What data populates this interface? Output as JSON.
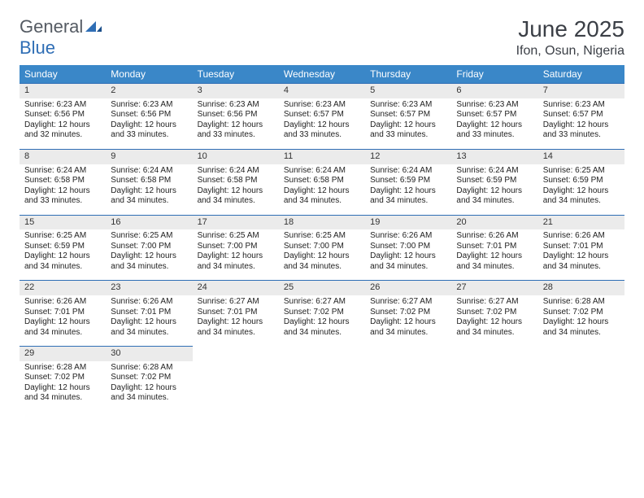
{
  "logo": {
    "general": "General",
    "blue": "Blue"
  },
  "title": "June 2025",
  "location": "Ifon, Osun, Nigeria",
  "colors": {
    "header_bg": "#3a87c8",
    "header_text": "#ffffff",
    "border": "#2f6eb5",
    "daynum_bg": "#ebebeb",
    "logo_gray": "#555b63",
    "logo_blue": "#2f6eb5",
    "text": "#222222",
    "title_color": "#3b3f46"
  },
  "day_headers": [
    "Sunday",
    "Monday",
    "Tuesday",
    "Wednesday",
    "Thursday",
    "Friday",
    "Saturday"
  ],
  "weeks": [
    [
      {
        "n": "1",
        "sr": "Sunrise: 6:23 AM",
        "ss": "Sunset: 6:56 PM",
        "d1": "Daylight: 12 hours",
        "d2": "and 32 minutes."
      },
      {
        "n": "2",
        "sr": "Sunrise: 6:23 AM",
        "ss": "Sunset: 6:56 PM",
        "d1": "Daylight: 12 hours",
        "d2": "and 33 minutes."
      },
      {
        "n": "3",
        "sr": "Sunrise: 6:23 AM",
        "ss": "Sunset: 6:56 PM",
        "d1": "Daylight: 12 hours",
        "d2": "and 33 minutes."
      },
      {
        "n": "4",
        "sr": "Sunrise: 6:23 AM",
        "ss": "Sunset: 6:57 PM",
        "d1": "Daylight: 12 hours",
        "d2": "and 33 minutes."
      },
      {
        "n": "5",
        "sr": "Sunrise: 6:23 AM",
        "ss": "Sunset: 6:57 PM",
        "d1": "Daylight: 12 hours",
        "d2": "and 33 minutes."
      },
      {
        "n": "6",
        "sr": "Sunrise: 6:23 AM",
        "ss": "Sunset: 6:57 PM",
        "d1": "Daylight: 12 hours",
        "d2": "and 33 minutes."
      },
      {
        "n": "7",
        "sr": "Sunrise: 6:23 AM",
        "ss": "Sunset: 6:57 PM",
        "d1": "Daylight: 12 hours",
        "d2": "and 33 minutes."
      }
    ],
    [
      {
        "n": "8",
        "sr": "Sunrise: 6:24 AM",
        "ss": "Sunset: 6:58 PM",
        "d1": "Daylight: 12 hours",
        "d2": "and 33 minutes."
      },
      {
        "n": "9",
        "sr": "Sunrise: 6:24 AM",
        "ss": "Sunset: 6:58 PM",
        "d1": "Daylight: 12 hours",
        "d2": "and 34 minutes."
      },
      {
        "n": "10",
        "sr": "Sunrise: 6:24 AM",
        "ss": "Sunset: 6:58 PM",
        "d1": "Daylight: 12 hours",
        "d2": "and 34 minutes."
      },
      {
        "n": "11",
        "sr": "Sunrise: 6:24 AM",
        "ss": "Sunset: 6:58 PM",
        "d1": "Daylight: 12 hours",
        "d2": "and 34 minutes."
      },
      {
        "n": "12",
        "sr": "Sunrise: 6:24 AM",
        "ss": "Sunset: 6:59 PM",
        "d1": "Daylight: 12 hours",
        "d2": "and 34 minutes."
      },
      {
        "n": "13",
        "sr": "Sunrise: 6:24 AM",
        "ss": "Sunset: 6:59 PM",
        "d1": "Daylight: 12 hours",
        "d2": "and 34 minutes."
      },
      {
        "n": "14",
        "sr": "Sunrise: 6:25 AM",
        "ss": "Sunset: 6:59 PM",
        "d1": "Daylight: 12 hours",
        "d2": "and 34 minutes."
      }
    ],
    [
      {
        "n": "15",
        "sr": "Sunrise: 6:25 AM",
        "ss": "Sunset: 6:59 PM",
        "d1": "Daylight: 12 hours",
        "d2": "and 34 minutes."
      },
      {
        "n": "16",
        "sr": "Sunrise: 6:25 AM",
        "ss": "Sunset: 7:00 PM",
        "d1": "Daylight: 12 hours",
        "d2": "and 34 minutes."
      },
      {
        "n": "17",
        "sr": "Sunrise: 6:25 AM",
        "ss": "Sunset: 7:00 PM",
        "d1": "Daylight: 12 hours",
        "d2": "and 34 minutes."
      },
      {
        "n": "18",
        "sr": "Sunrise: 6:25 AM",
        "ss": "Sunset: 7:00 PM",
        "d1": "Daylight: 12 hours",
        "d2": "and 34 minutes."
      },
      {
        "n": "19",
        "sr": "Sunrise: 6:26 AM",
        "ss": "Sunset: 7:00 PM",
        "d1": "Daylight: 12 hours",
        "d2": "and 34 minutes."
      },
      {
        "n": "20",
        "sr": "Sunrise: 6:26 AM",
        "ss": "Sunset: 7:01 PM",
        "d1": "Daylight: 12 hours",
        "d2": "and 34 minutes."
      },
      {
        "n": "21",
        "sr": "Sunrise: 6:26 AM",
        "ss": "Sunset: 7:01 PM",
        "d1": "Daylight: 12 hours",
        "d2": "and 34 minutes."
      }
    ],
    [
      {
        "n": "22",
        "sr": "Sunrise: 6:26 AM",
        "ss": "Sunset: 7:01 PM",
        "d1": "Daylight: 12 hours",
        "d2": "and 34 minutes."
      },
      {
        "n": "23",
        "sr": "Sunrise: 6:26 AM",
        "ss": "Sunset: 7:01 PM",
        "d1": "Daylight: 12 hours",
        "d2": "and 34 minutes."
      },
      {
        "n": "24",
        "sr": "Sunrise: 6:27 AM",
        "ss": "Sunset: 7:01 PM",
        "d1": "Daylight: 12 hours",
        "d2": "and 34 minutes."
      },
      {
        "n": "25",
        "sr": "Sunrise: 6:27 AM",
        "ss": "Sunset: 7:02 PM",
        "d1": "Daylight: 12 hours",
        "d2": "and 34 minutes."
      },
      {
        "n": "26",
        "sr": "Sunrise: 6:27 AM",
        "ss": "Sunset: 7:02 PM",
        "d1": "Daylight: 12 hours",
        "d2": "and 34 minutes."
      },
      {
        "n": "27",
        "sr": "Sunrise: 6:27 AM",
        "ss": "Sunset: 7:02 PM",
        "d1": "Daylight: 12 hours",
        "d2": "and 34 minutes."
      },
      {
        "n": "28",
        "sr": "Sunrise: 6:28 AM",
        "ss": "Sunset: 7:02 PM",
        "d1": "Daylight: 12 hours",
        "d2": "and 34 minutes."
      }
    ],
    [
      {
        "n": "29",
        "sr": "Sunrise: 6:28 AM",
        "ss": "Sunset: 7:02 PM",
        "d1": "Daylight: 12 hours",
        "d2": "and 34 minutes."
      },
      {
        "n": "30",
        "sr": "Sunrise: 6:28 AM",
        "ss": "Sunset: 7:02 PM",
        "d1": "Daylight: 12 hours",
        "d2": "and 34 minutes."
      },
      null,
      null,
      null,
      null,
      null
    ]
  ]
}
